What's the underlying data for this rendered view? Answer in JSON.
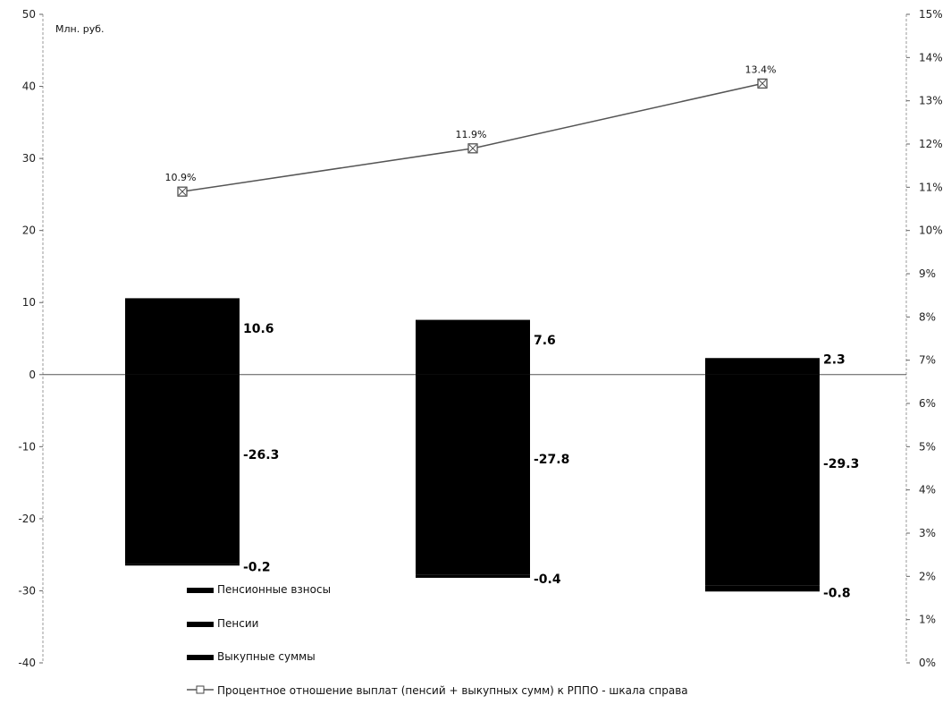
{
  "chart_data": {
    "type": "bar",
    "unit_label": "Млн. руб.",
    "categories": [
      "",
      "",
      ""
    ],
    "ylim": [
      -40,
      50
    ],
    "y_ticks": [
      50,
      40,
      30,
      20,
      10,
      0,
      -10,
      -20,
      -30,
      -40
    ],
    "y2lim": [
      0,
      15
    ],
    "y2_ticks": [
      "15%",
      "14%",
      "13%",
      "12%",
      "11%",
      "10%",
      "9%",
      "8%",
      "7%",
      "6%",
      "5%",
      "4%",
      "3%",
      "2%",
      "1%",
      "0%"
    ],
    "grid": false,
    "legend_position": "bottom-center",
    "series": [
      {
        "name": "Пенсионные взносы",
        "type": "bar",
        "values": [
          10.6,
          7.6,
          2.3
        ],
        "labels": [
          "10.6",
          "7.6",
          "2.3"
        ],
        "color": "#000000"
      },
      {
        "name": "Пенсии",
        "type": "bar",
        "values": [
          -26.3,
          -27.8,
          -29.3
        ],
        "labels": [
          "-26.3",
          "-27.8",
          "-29.3"
        ],
        "color": "#000000"
      },
      {
        "name": "Выкупные суммы",
        "type": "bar",
        "values": [
          -0.2,
          -0.4,
          -0.8
        ],
        "labels": [
          "-0.2",
          "-0.4",
          "-0.8"
        ],
        "color": "#000000"
      },
      {
        "name": "Процентное отношение выплат (пенсий + выкупных сумм) к РППО - шкала справа",
        "type": "line",
        "axis": "right",
        "values": [
          10.9,
          11.9,
          13.4
        ],
        "labels": [
          "10.9%",
          "11.9%",
          "13.4%"
        ],
        "color": "#555555"
      }
    ]
  }
}
